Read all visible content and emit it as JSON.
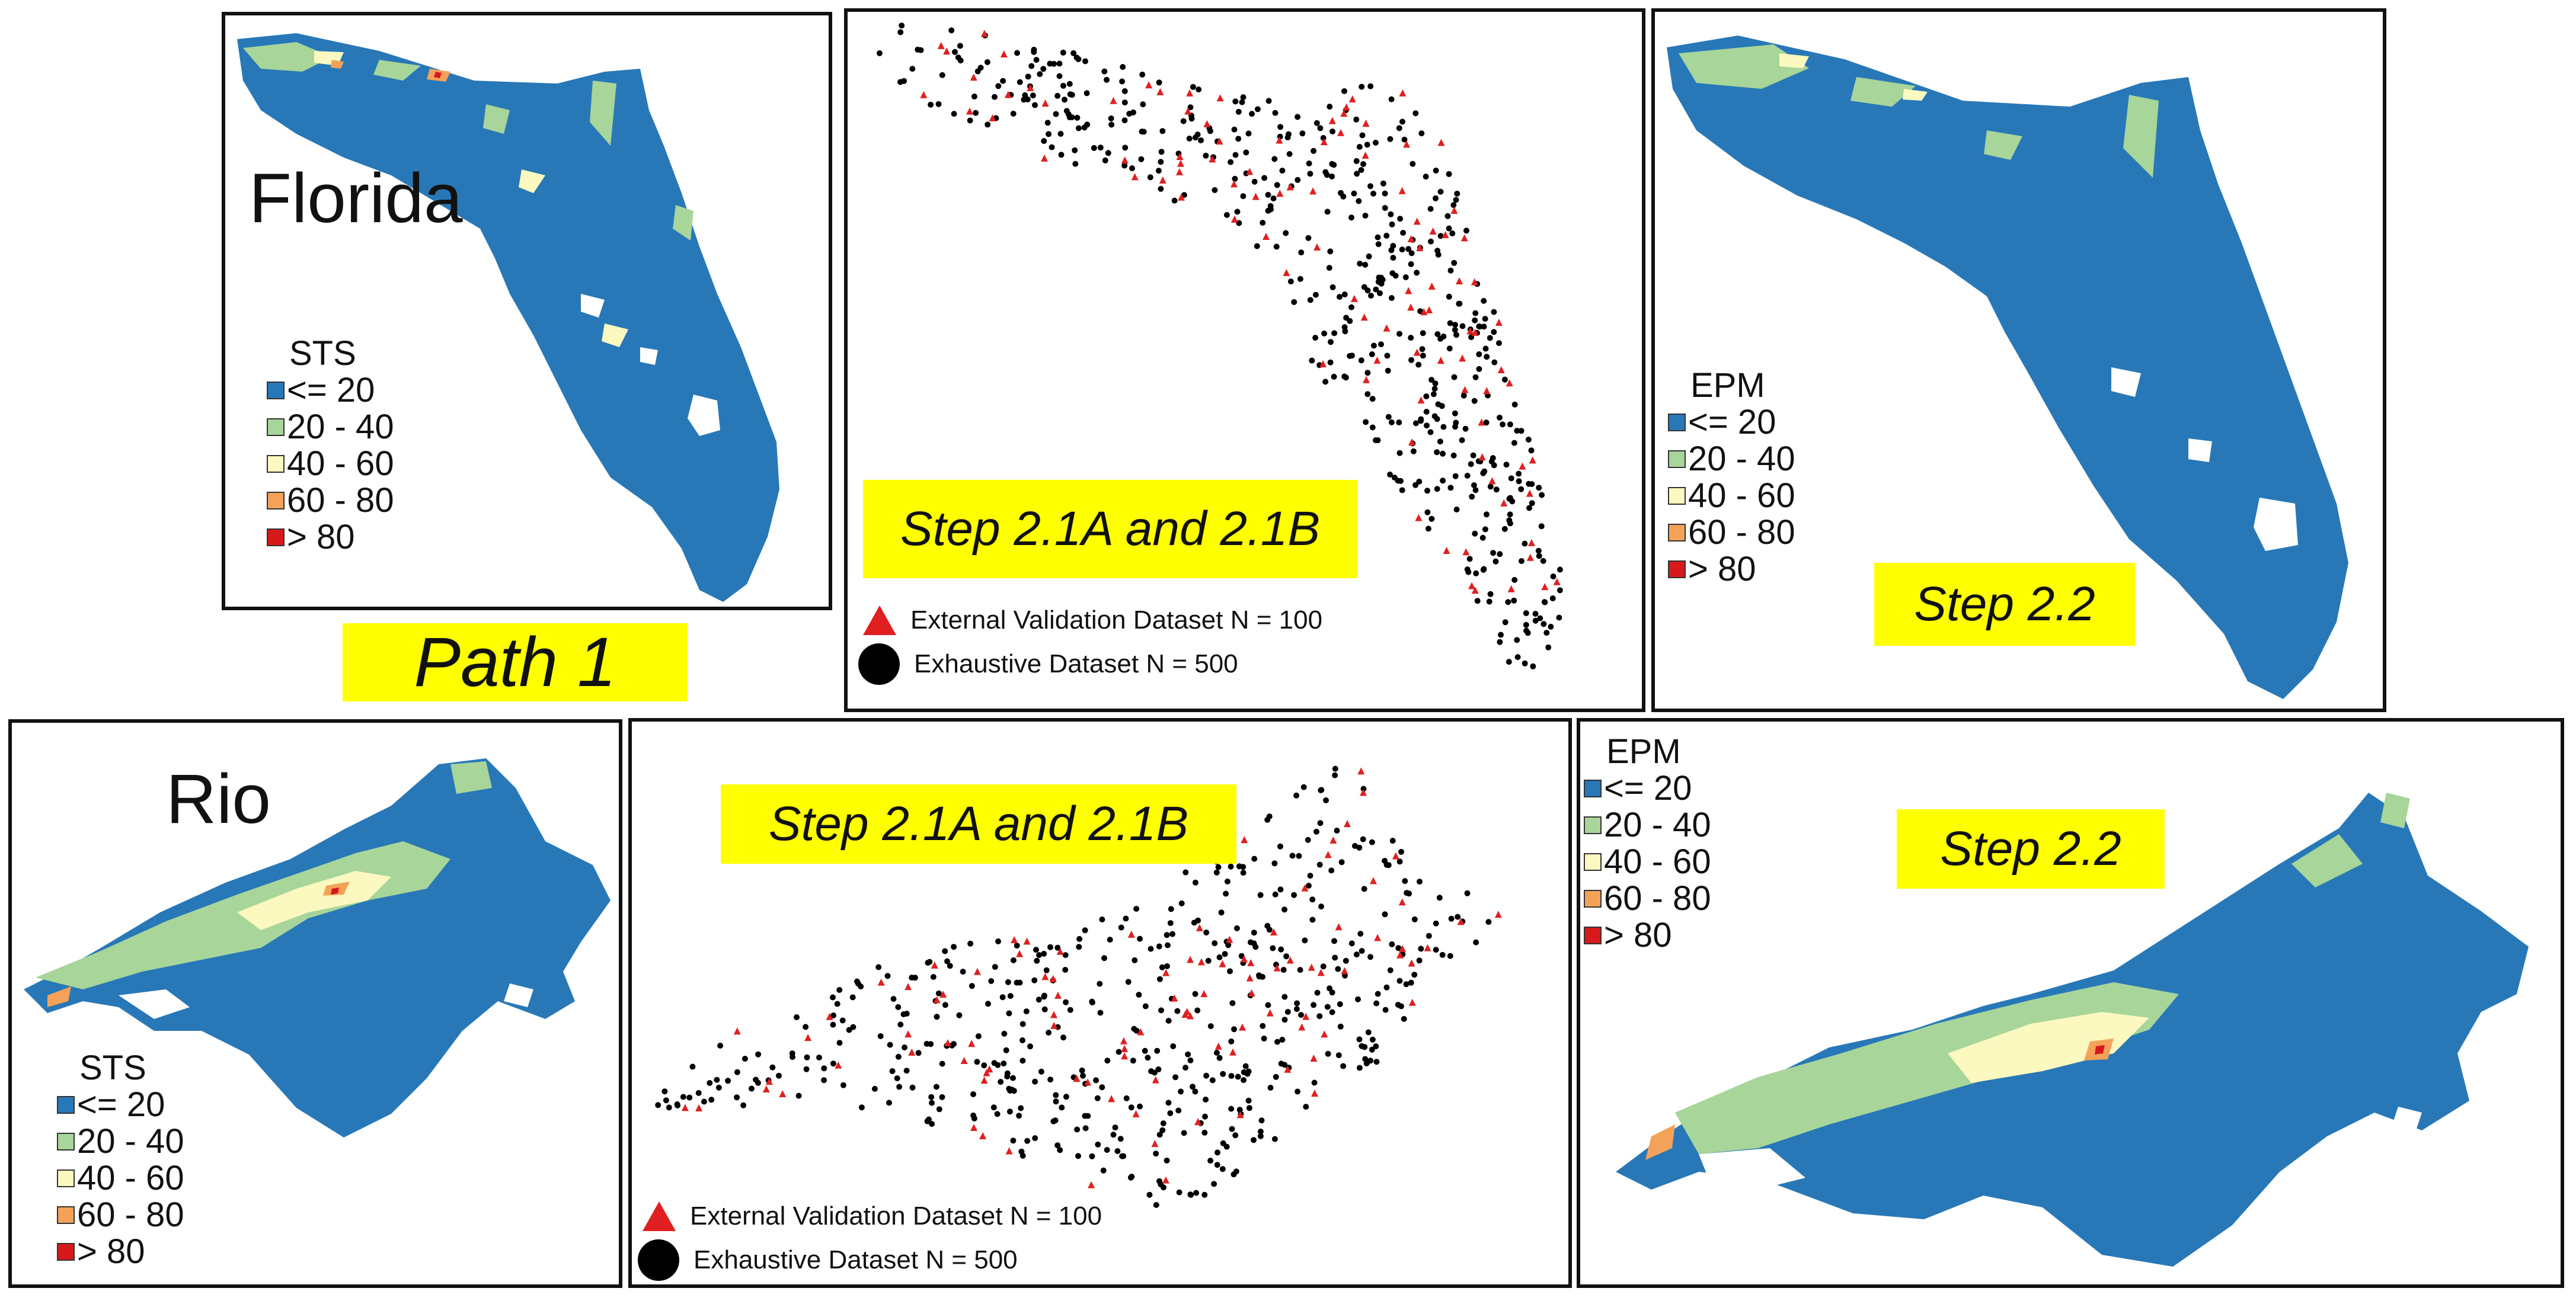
{
  "colors": {
    "class_1": "#2878b8",
    "class_2": "#a7d59a",
    "class_3": "#fbf8c0",
    "class_4": "#f4a259",
    "class_5": "#d7191c",
    "validation_point": "#e02020",
    "exhaustive_point": "#000000",
    "label_highlight": "#ffff00"
  },
  "path_label": "Path 1",
  "florida": {
    "title": "Florida",
    "sts_legend": {
      "title": "STS",
      "classes": [
        "<= 20",
        "20 - 40",
        "40 - 60",
        "60 - 80",
        "> 80"
      ]
    },
    "points_panel": {
      "step_label": "Step 2.1A and 2.1B",
      "validation_label": "External Validation Dataset N = 100",
      "exhaustive_label": "Exhaustive Dataset N = 500"
    },
    "epm_panel": {
      "step_label": "Step 2.2",
      "legend_title": "EPM",
      "classes": [
        "<= 20",
        "20 - 40",
        "40 - 60",
        "60 - 80",
        "> 80"
      ]
    }
  },
  "rio": {
    "title": "Rio",
    "sts_legend": {
      "title": "STS",
      "classes": [
        "<= 20",
        "20 - 40",
        "40 - 60",
        "60 - 80",
        "> 80"
      ]
    },
    "points_panel": {
      "step_label": "Step 2.1A and 2.1B",
      "validation_label": "External Validation Dataset N = 100",
      "exhaustive_label": "Exhaustive Dataset N = 500"
    },
    "epm_panel": {
      "step_label": "Step 2.2",
      "legend_title": "EPM",
      "classes": [
        "<= 20",
        "20 - 40",
        "40 - 60",
        "60 - 80",
        "> 80"
      ]
    }
  }
}
